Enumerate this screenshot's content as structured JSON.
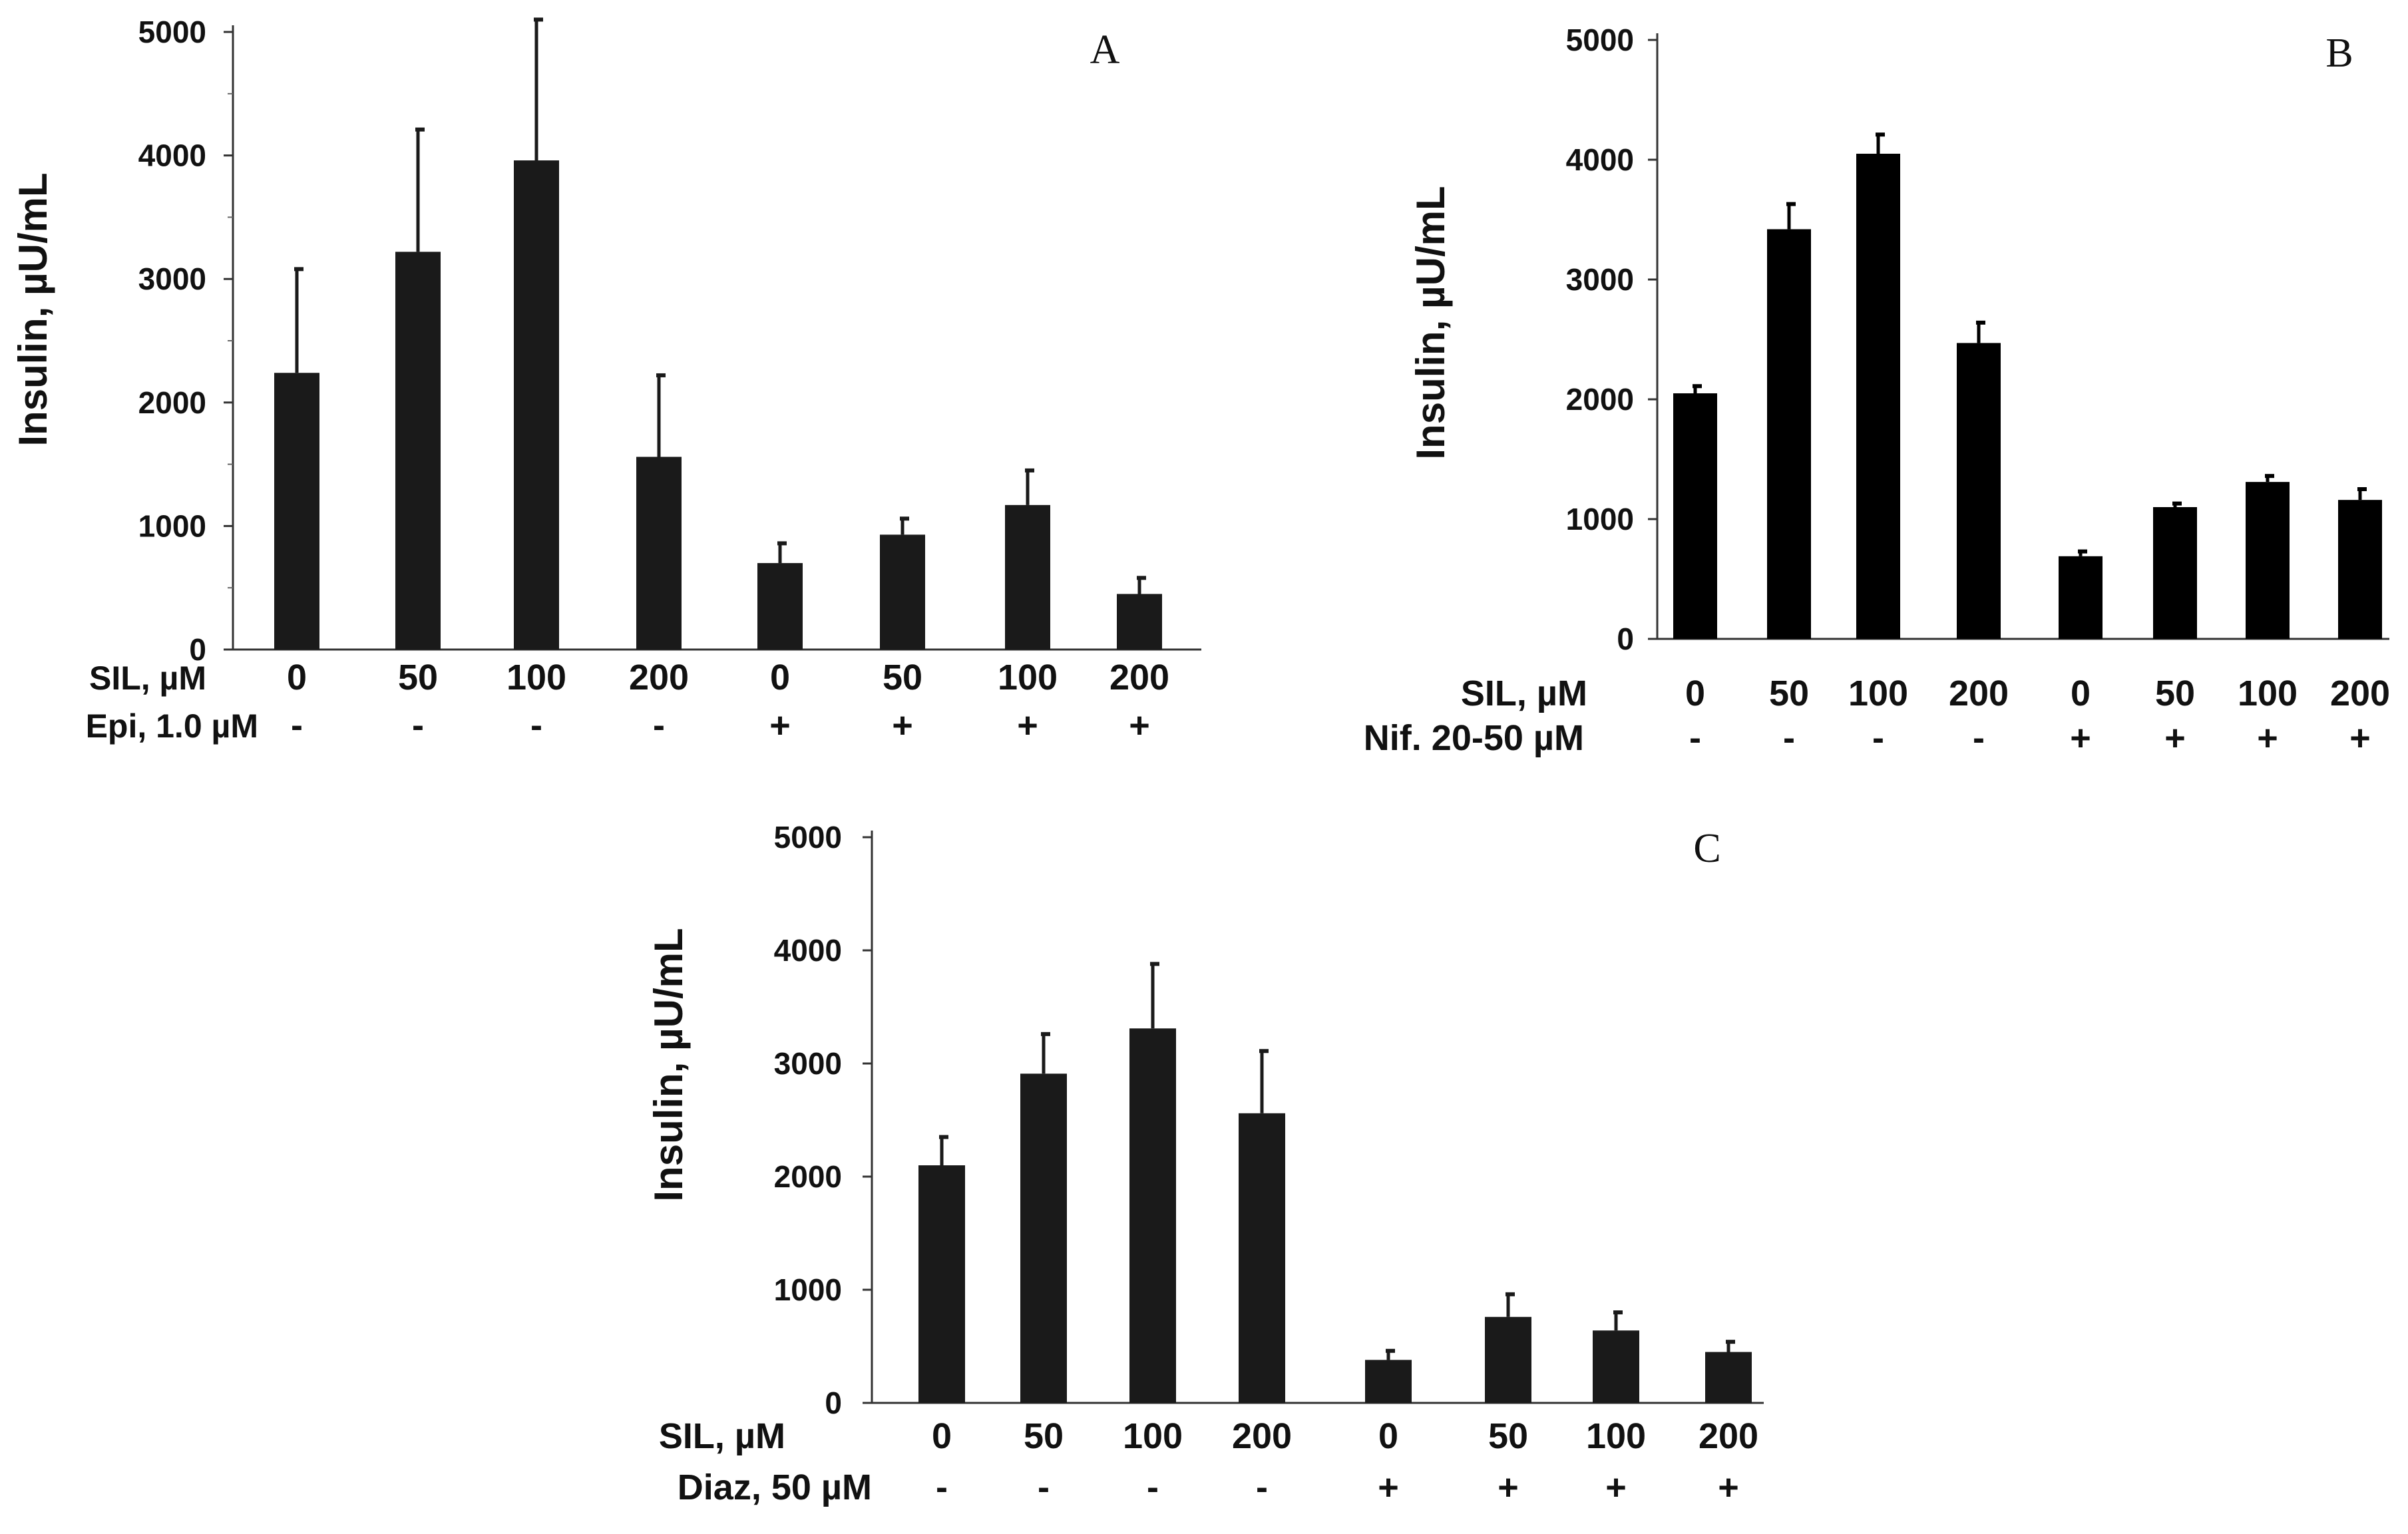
{
  "chart_data": [
    {
      "type": "bar",
      "panel": "A",
      "ylabel": "Insulin, µU/mL",
      "ylim": [
        0,
        5000
      ],
      "yticks": [
        0,
        1000,
        2000,
        3000,
        4000,
        5000
      ],
      "ytick_labels": [
        "0",
        "1000",
        "2000",
        "3000",
        "4000",
        "5000"
      ],
      "row1_label": "SIL,  µM",
      "row2_label": "Epi,  1.0 µM",
      "categories": [
        "0",
        "50",
        "100",
        "200",
        "0",
        "50",
        "100",
        "200"
      ],
      "row2_values": [
        "-",
        "-",
        "-",
        "-",
        "+",
        "+",
        "+",
        "+"
      ],
      "values": [
        2240,
        3220,
        3960,
        1560,
        700,
        930,
        1170,
        450
      ],
      "errors": [
        840,
        990,
        1140,
        660,
        160,
        130,
        280,
        130
      ],
      "bar_color": "#1a1a1a"
    },
    {
      "type": "bar",
      "panel": "B",
      "ylabel": "Insulin, µU/mL",
      "ylim": [
        0,
        5000
      ],
      "yticks": [
        0,
        1000,
        2000,
        3000,
        4000,
        5000
      ],
      "ytick_labels": [
        "0",
        "1000",
        "2000",
        "3000",
        "4000",
        "5000"
      ],
      "row1_label": "SIL, µM",
      "row2_label": "Nif.  20-50 µM",
      "categories": [
        "0",
        "50",
        "100",
        "200",
        "0",
        "50",
        "100",
        "200"
      ],
      "row2_values": [
        "-",
        "-",
        "-",
        "-",
        "+",
        "+",
        "+",
        "+"
      ],
      "values": [
        2050,
        3420,
        4050,
        2470,
        690,
        1100,
        1310,
        1160
      ],
      "errors": [
        60,
        210,
        160,
        170,
        40,
        30,
        50,
        90
      ],
      "bar_color": "#000000"
    },
    {
      "type": "bar",
      "panel": "C",
      "ylabel": "Insulin, µU/mL",
      "ylim": [
        0,
        5000
      ],
      "yticks": [
        0,
        1000,
        2000,
        3000,
        4000,
        5000
      ],
      "ytick_labels": [
        "0",
        "1000",
        "2000",
        "3000",
        "4000",
        "5000"
      ],
      "row1_label": "SIL, µM",
      "row2_label": "Diaz, 50 µM",
      "categories": [
        "0",
        "50",
        "100",
        "200",
        "0",
        "50",
        "100",
        "200"
      ],
      "row2_values": [
        "-",
        "-",
        "-",
        "-",
        "+",
        "+",
        "+",
        "+"
      ],
      "values": [
        2100,
        2910,
        3310,
        2560,
        380,
        760,
        640,
        450
      ],
      "errors": [
        250,
        350,
        570,
        550,
        80,
        200,
        160,
        90
      ],
      "bar_color": "#1a1a1a"
    }
  ]
}
